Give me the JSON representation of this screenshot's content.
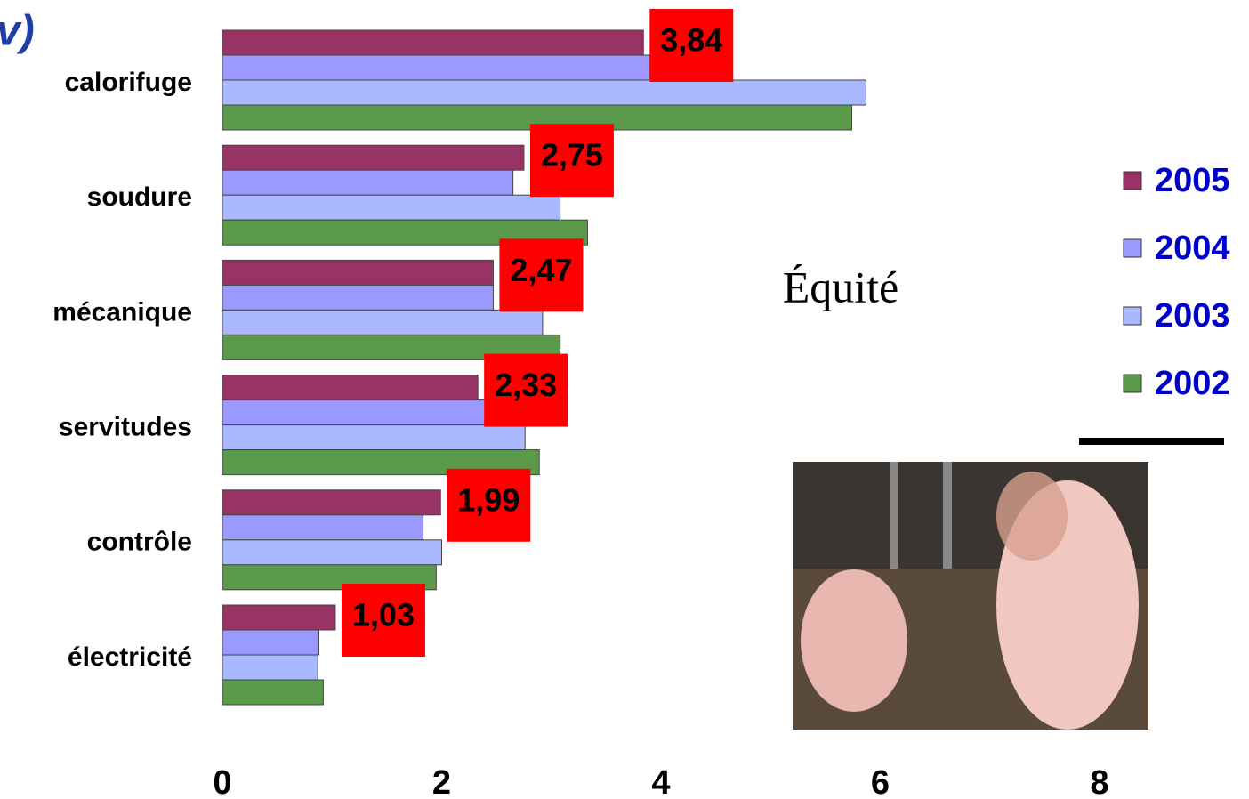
{
  "chart_data": {
    "type": "hbar",
    "heading": "v)",
    "annotation": "Équité",
    "categories": [
      "calorifuge",
      "soudure",
      "mécanique",
      "servitudes",
      "contrôle",
      "électricité"
    ],
    "series": [
      {
        "name": "2005",
        "color": "#993366",
        "values": [
          3.84,
          2.75,
          2.47,
          2.33,
          1.99,
          1.03
        ],
        "value_labels": [
          "3,84",
          "2,75",
          "2,47",
          "2,33",
          "1,99",
          "1,03"
        ]
      },
      {
        "name": "2004",
        "color": "#9999ff",
        "values": [
          3.9,
          2.65,
          2.47,
          2.45,
          1.83,
          0.88
        ]
      },
      {
        "name": "2003",
        "color": "#a9b8ff",
        "values": [
          5.87,
          3.08,
          2.92,
          2.76,
          2.0,
          0.87
        ]
      },
      {
        "name": "2002",
        "color": "#5a9a4a",
        "values": [
          5.74,
          3.33,
          3.08,
          2.89,
          1.95,
          0.92
        ]
      }
    ],
    "xlim": [
      0,
      8
    ],
    "xticks": [
      0,
      2,
      4,
      6,
      8
    ],
    "grid": false
  }
}
